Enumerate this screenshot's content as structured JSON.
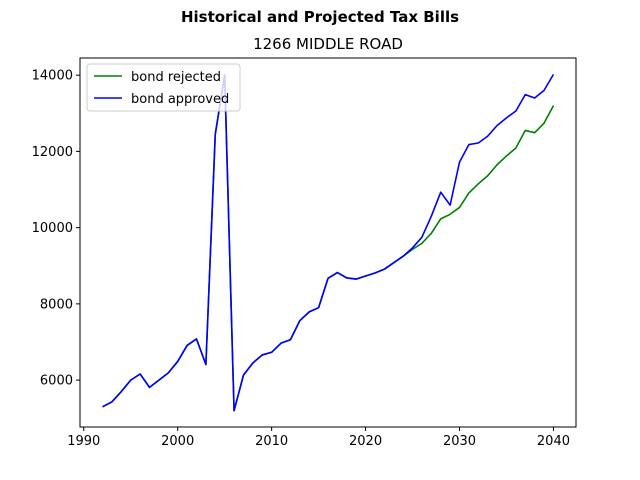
{
  "figure": {
    "suptitle": "Historical and Projected Tax Bills"
  },
  "chart_data": {
    "type": "line",
    "title": "1266 MIDDLE ROAD",
    "xlabel": "",
    "ylabel": "",
    "xlim": [
      1989.6,
      2042.4
    ],
    "ylim": [
      4770,
      14450
    ],
    "xticks": [
      1990,
      2000,
      2010,
      2020,
      2030,
      2040
    ],
    "yticks": [
      6000,
      8000,
      10000,
      12000,
      14000
    ],
    "grid": false,
    "legend_position": "top-left",
    "series": [
      {
        "name": "bond rejected",
        "color": "#008000",
        "x": [
          1992,
          1993,
          1994,
          1995,
          1996,
          1997,
          1998,
          1999,
          2000,
          2001,
          2002,
          2003,
          2004,
          2005,
          2006,
          2007,
          2008,
          2009,
          2010,
          2011,
          2012,
          2013,
          2014,
          2015,
          2016,
          2017,
          2018,
          2019,
          2020,
          2021,
          2022,
          2023,
          2024,
          2025,
          2026,
          2027,
          2028,
          2029,
          2030,
          2031,
          2032,
          2033,
          2034,
          2035,
          2036,
          2037,
          2038,
          2039,
          2040
        ],
        "values": [
          5300,
          5430,
          5700,
          6000,
          6160,
          5810,
          6000,
          6190,
          6490,
          6910,
          7080,
          6410,
          12450,
          14000,
          5200,
          6130,
          6450,
          6660,
          6730,
          6970,
          7060,
          7560,
          7790,
          7900,
          8670,
          8820,
          8680,
          8650,
          8730,
          8810,
          8910,
          9080,
          9250,
          9430,
          9590,
          9850,
          10230,
          10350,
          10530,
          10910,
          11150,
          11360,
          11650,
          11880,
          12090,
          12550,
          12490,
          12740,
          13200
        ]
      },
      {
        "name": "bond approved",
        "color": "#0000ff",
        "x": [
          1992,
          1993,
          1994,
          1995,
          1996,
          1997,
          1998,
          1999,
          2000,
          2001,
          2002,
          2003,
          2004,
          2005,
          2006,
          2007,
          2008,
          2009,
          2010,
          2011,
          2012,
          2013,
          2014,
          2015,
          2016,
          2017,
          2018,
          2019,
          2020,
          2021,
          2022,
          2023,
          2024,
          2025,
          2026,
          2027,
          2028,
          2029,
          2030,
          2031,
          2032,
          2033,
          2034,
          2035,
          2036,
          2037,
          2038,
          2039,
          2040
        ],
        "values": [
          5300,
          5430,
          5700,
          6000,
          6160,
          5810,
          6000,
          6190,
          6490,
          6910,
          7080,
          6410,
          12450,
          14000,
          5200,
          6130,
          6450,
          6660,
          6730,
          6970,
          7060,
          7560,
          7790,
          7900,
          8670,
          8820,
          8680,
          8650,
          8730,
          8810,
          8910,
          9080,
          9250,
          9470,
          9750,
          10300,
          10930,
          10590,
          11720,
          12180,
          12220,
          12400,
          12680,
          12880,
          13060,
          13490,
          13400,
          13600,
          14020
        ]
      }
    ]
  }
}
